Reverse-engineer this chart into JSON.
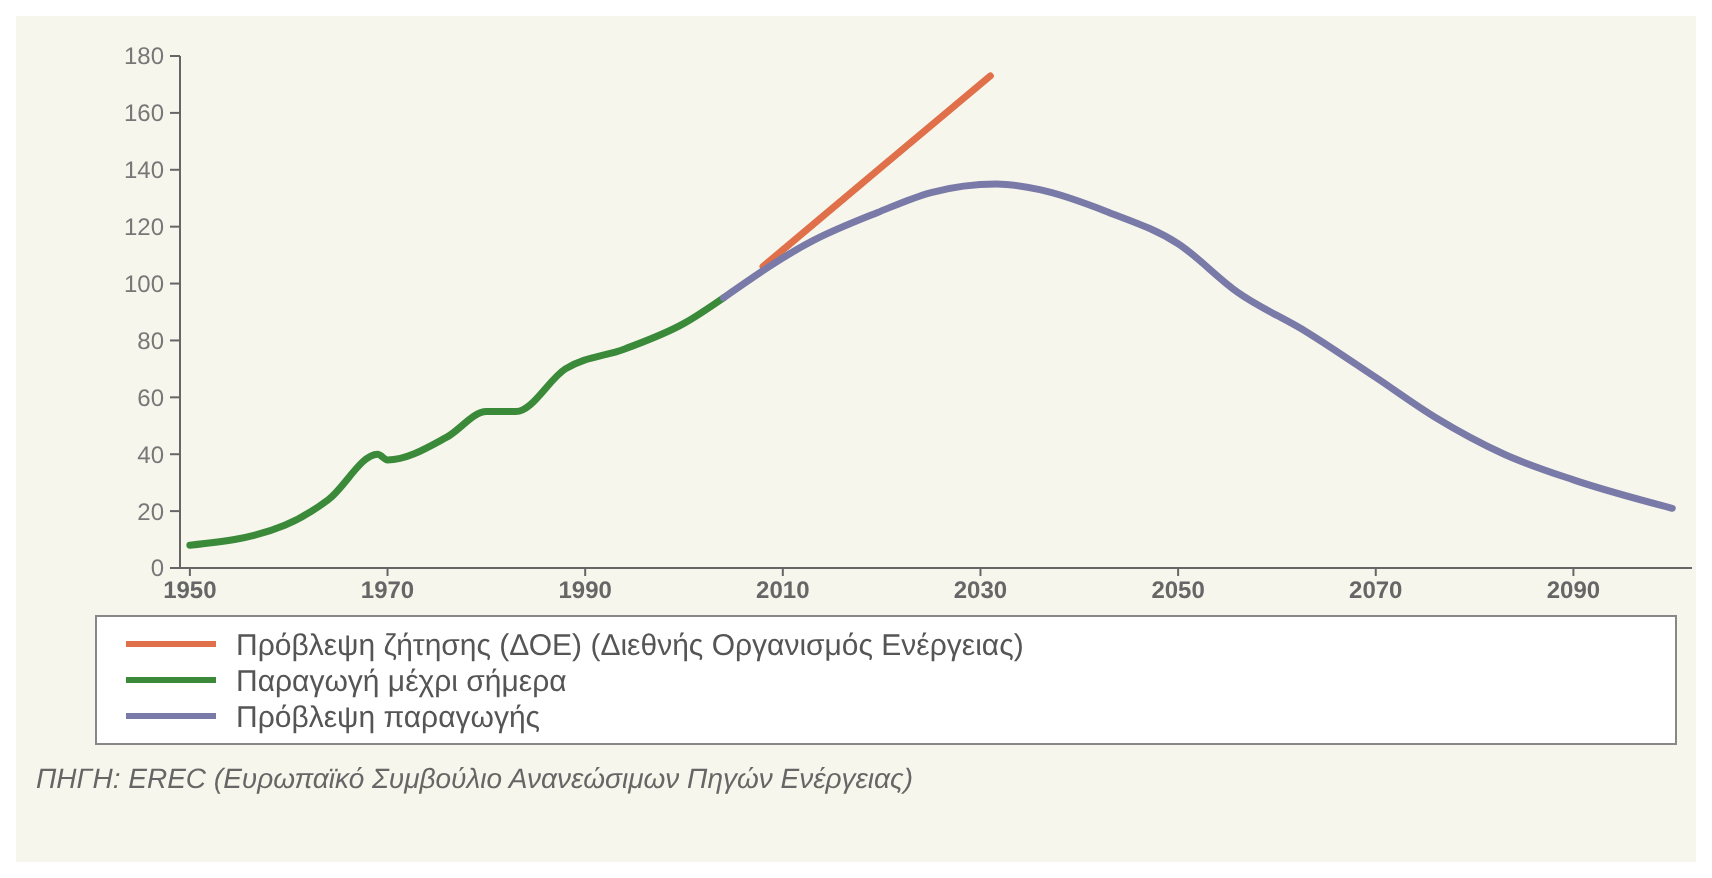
{
  "chart_data": {
    "type": "line",
    "xlim": [
      1949,
      2102
    ],
    "xticks": [
      1950,
      1970,
      1990,
      2010,
      2030,
      2050,
      2070,
      2090
    ],
    "ylim": [
      0,
      180
    ],
    "yticks": [
      0,
      20,
      40,
      60,
      80,
      100,
      120,
      140,
      160,
      180
    ],
    "grid": false,
    "legend": "bottom",
    "marker": "none",
    "line_style": "solid",
    "series": [
      {
        "name": "Πρόβλεψη ζήτησης (ΔΟΕ) (Διεθνής Οργανισμός Ενέργειας)",
        "color": "#e0704a",
        "x": [
          2008,
          2020,
          2031
        ],
        "values": [
          106,
          141,
          173
        ]
      },
      {
        "name": "Παραγωγή μέχρι σήμερα",
        "color": "#3a8a3a",
        "x": [
          1950,
          1959.6,
          1964,
          1969,
          1970,
          1976,
          1980,
          1983,
          1988,
          1994,
          2000,
          2004
        ],
        "values": [
          8,
          15,
          24,
          40,
          38,
          46,
          55,
          55,
          70,
          77,
          86,
          95
        ]
      },
      {
        "name": "Πρόβλεψη παραγωγής",
        "color": "#7a7aa8",
        "x": [
          2004,
          2013,
          2019.6,
          2025,
          2031.6,
          2036,
          2043,
          2050,
          2056,
          2063,
          2070,
          2076,
          2083,
          2090,
          2100
        ],
        "values": [
          95,
          115,
          125,
          132,
          135,
          133,
          125,
          114,
          97,
          83,
          67,
          53,
          40,
          31,
          21
        ]
      }
    ],
    "annotations": [
      "ΠΗΓΗ: EREC (Ευρωπαϊκό Συμβούλιο Ανανεώσιμων Πηγών Ενέργειας)"
    ]
  }
}
